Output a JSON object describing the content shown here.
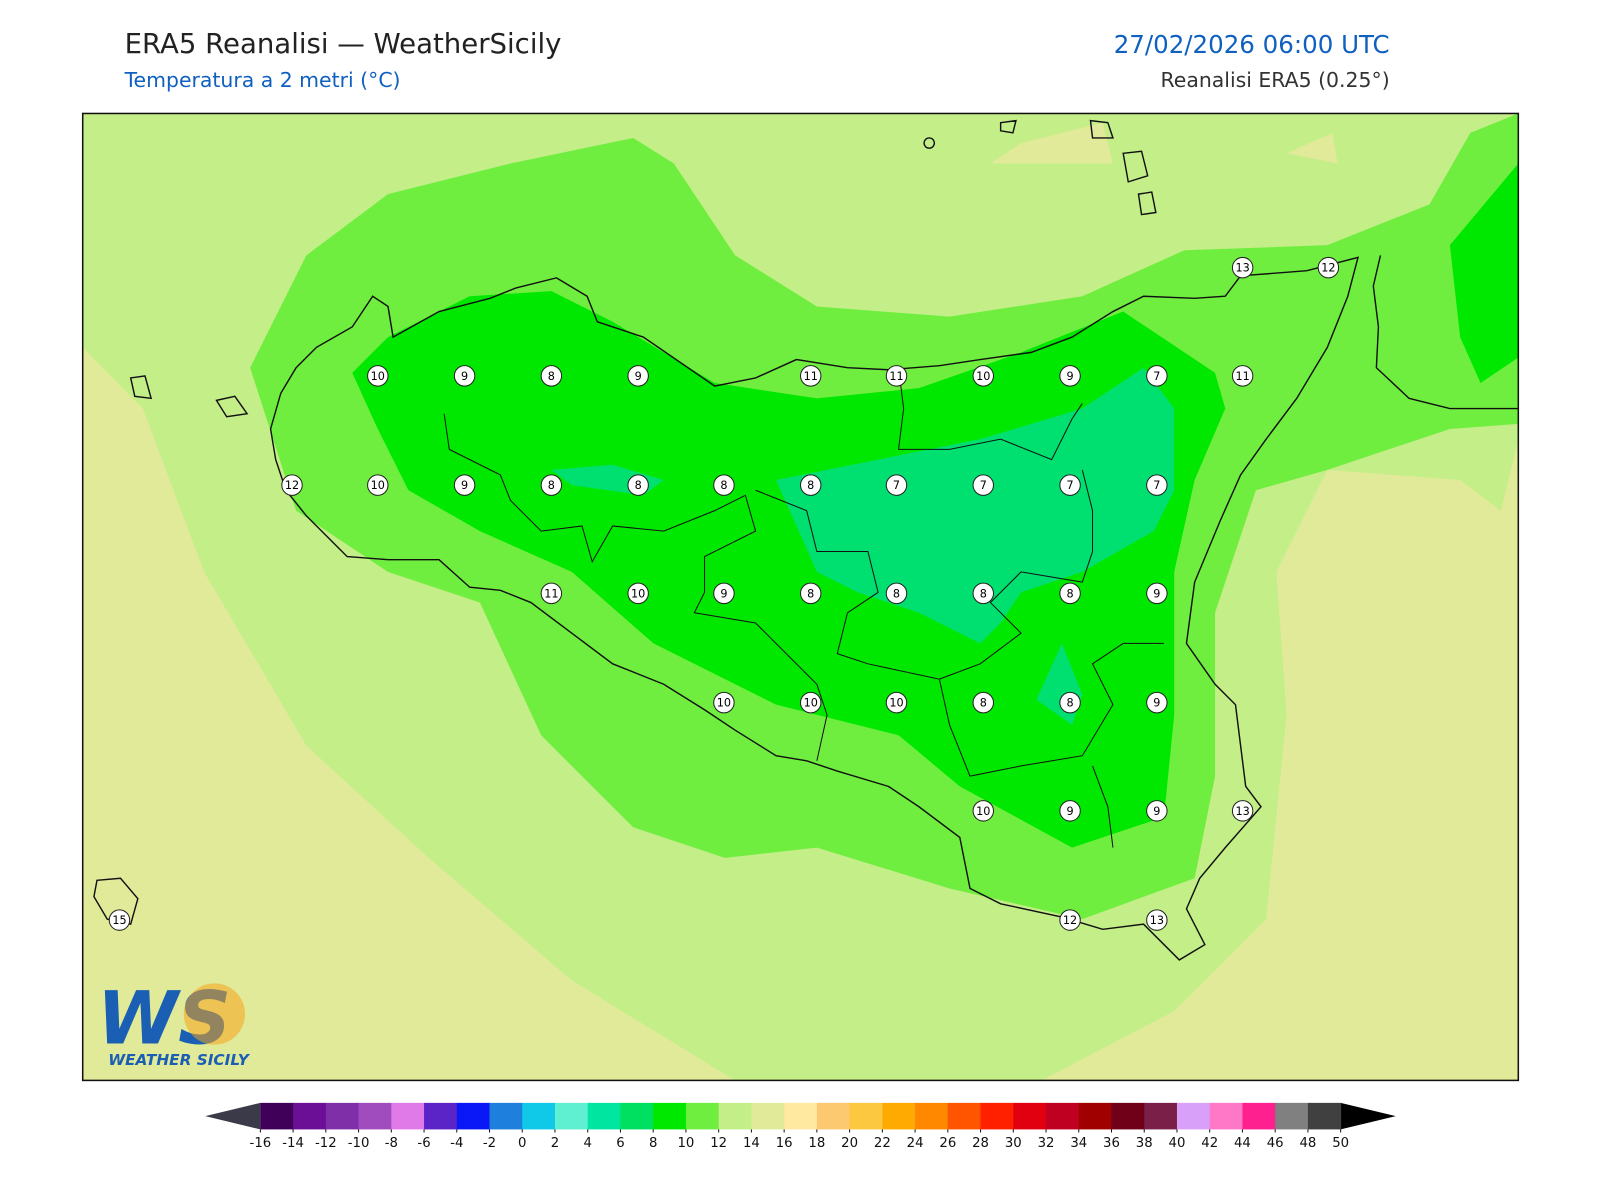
{
  "header": {
    "title": "ERA5 Reanalisi — WeatherSicily",
    "subtitle": "Temperatura a 2 metri (°C)",
    "datetime": "27/02/2026 06:00 UTC",
    "source": "Reanalisi ERA5 (0.25°)"
  },
  "station_values": [
    13,
    12,
    10,
    9,
    8,
    9,
    11,
    11,
    10,
    9,
    7,
    11,
    12,
    10,
    9,
    8,
    8,
    8,
    8,
    7,
    7,
    7,
    7,
    11,
    10,
    9,
    8,
    8,
    8,
    8,
    9,
    10,
    10,
    10,
    8,
    8,
    9,
    10,
    9,
    9,
    13,
    15,
    12,
    13
  ],
  "colorbar": {
    "ticks": [
      -16,
      -14,
      -12,
      -10,
      -8,
      -6,
      -4,
      -2,
      0,
      2,
      4,
      6,
      8,
      10,
      12,
      14,
      16,
      18,
      20,
      22,
      24,
      26,
      28,
      30,
      32,
      34,
      36,
      38,
      40,
      42,
      44,
      46,
      48,
      50
    ],
    "colors": [
      "#40005a",
      "#6a0f96",
      "#7f2fa8",
      "#a04cbe",
      "#e07ae8",
      "#5b24c6",
      "#0a18f8",
      "#1e7fdc",
      "#10c8e8",
      "#5ef0d0",
      "#00e6a0",
      "#00e060",
      "#00e800",
      "#70ee40",
      "#c3ee88",
      "#e0ea98",
      "#ffe8a0",
      "#fcc870",
      "#fcc840",
      "#ffaa00",
      "#ff8800",
      "#ff5500",
      "#ff2000",
      "#e00010",
      "#c00020",
      "#a00000",
      "#700018",
      "#7a2048",
      "#d8a0f8",
      "#ff78c8",
      "#ff2090",
      "#808080",
      "#404040"
    ],
    "under_color": "#3a3a48",
    "over_color": "#000000"
  },
  "logo": {
    "mark": "WS",
    "text": "WEATHER SICILY"
  }
}
